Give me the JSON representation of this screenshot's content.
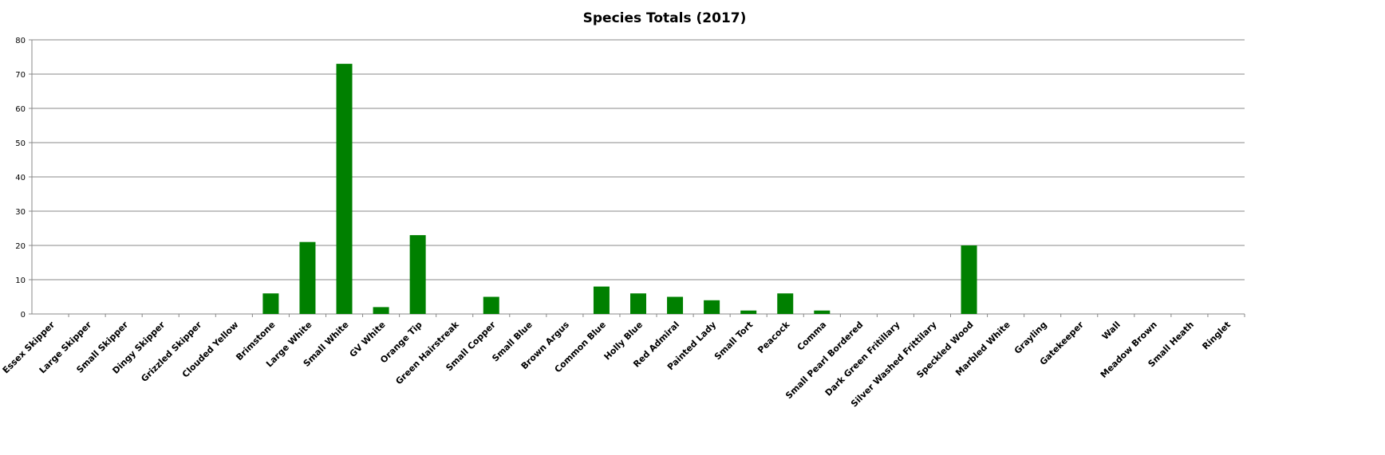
{
  "chart_data": {
    "type": "bar",
    "title": "Species Totals (2017)",
    "xlabel": "",
    "ylabel": "",
    "ylim": [
      0,
      80
    ],
    "yticks": [
      0,
      10,
      20,
      30,
      40,
      50,
      60,
      70,
      80
    ],
    "grid": true,
    "bar_color": "#008000",
    "categories": [
      "Essex Skipper",
      "Large Skipper",
      "Small Skipper",
      "Dingy Skipper",
      "Grizzled Skipper",
      "Clouded  Yellow",
      "Brimstone",
      "Large White",
      "Small White",
      "GV White",
      "Orange Tip",
      "Green Hairstreak",
      "Small Copper",
      "Small Blue",
      "Brown Argus",
      "Common Blue",
      "Holly Blue",
      "Red Admiral",
      "Painted Lady",
      "Small Tort",
      "Peacock",
      "Comma",
      "Small Pearl Bordered",
      "Dark Green Fritillary",
      "Silver Washed Frittilary",
      "Speckled Wood",
      "Marbled  White",
      "Grayling",
      "Gatekeeper",
      "Wall",
      "Meadow Brown",
      "Small Heath",
      "Ringlet"
    ],
    "values": [
      0,
      0,
      0,
      0,
      0,
      0,
      6,
      21,
      73,
      2,
      23,
      0,
      5,
      0,
      0,
      8,
      6,
      5,
      4,
      1,
      6,
      1,
      0,
      0,
      0,
      20,
      0,
      0,
      0,
      0,
      0,
      0,
      0
    ]
  }
}
